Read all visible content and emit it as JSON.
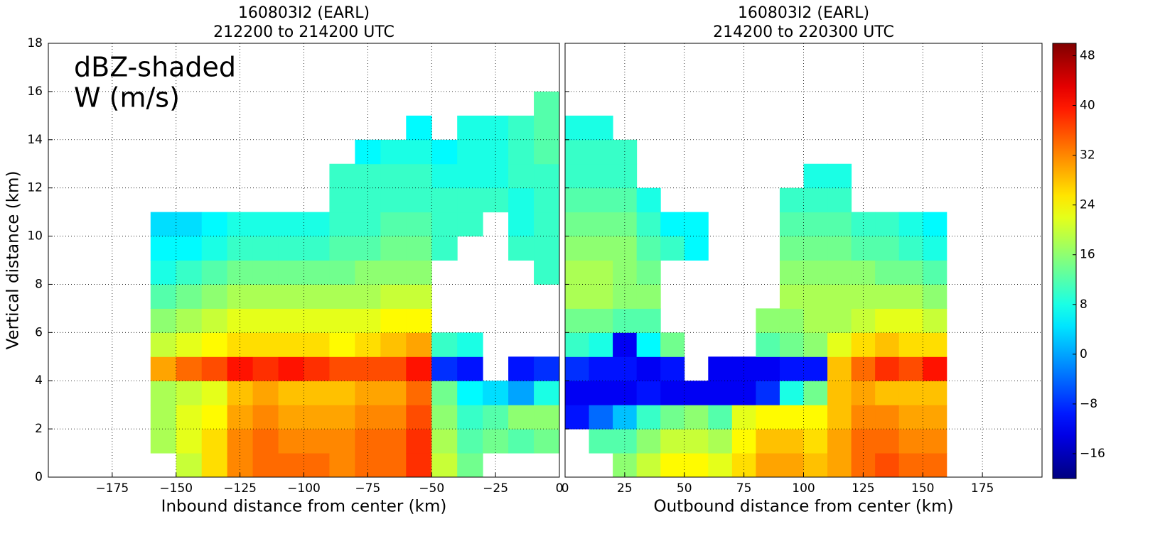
{
  "chart_data": [
    {
      "type": "heatmap",
      "title": [
        "160803I2 (EARL)",
        "212200 to 214200 UTC"
      ],
      "xlabel": "Inbound distance from center (km)",
      "ylabel": "Vertical distance (km)",
      "annotations": [
        "dBZ-shaded",
        "W (m/s)"
      ],
      "xlim": [
        -200,
        0
      ],
      "ylim": [
        0,
        18
      ],
      "xticks": [
        {
          "value": -175,
          "label": "−175"
        },
        {
          "value": -150,
          "label": "−150"
        },
        {
          "value": -125,
          "label": "−125"
        },
        {
          "value": -100,
          "label": "−100"
        },
        {
          "value": -75,
          "label": "−75"
        },
        {
          "value": -50,
          "label": "−50"
        },
        {
          "value": -25,
          "label": "−25"
        },
        0
      ],
      "yticks": [
        0,
        2,
        4,
        6,
        8,
        10,
        12,
        14,
        16,
        18
      ],
      "grid": true,
      "xbins": [
        -160,
        -150,
        -140,
        -130,
        -120,
        -110,
        -100,
        -90,
        -80,
        -70,
        -60,
        -50,
        -40,
        -30,
        -20,
        -10,
        0
      ],
      "ybins": [
        0,
        1,
        2,
        3,
        4,
        5,
        6,
        7,
        8,
        9,
        10,
        11,
        12,
        13,
        14,
        15,
        16
      ],
      "values": [
        [
          null,
          18,
          18,
          18,
          30,
          20,
          16,
          12,
          8,
          6,
          4,
          null,
          null,
          null,
          null,
          null
        ],
        [
          20,
          22,
          22,
          20,
          34,
          22,
          18,
          14,
          10,
          6,
          4,
          null,
          null,
          null,
          null,
          null
        ],
        [
          26,
          26,
          24,
          22,
          36,
          24,
          20,
          16,
          12,
          8,
          6,
          null,
          null,
          null,
          null,
          null
        ],
        [
          32,
          32,
          30,
          28,
          40,
          26,
          22,
          18,
          14,
          10,
          8,
          null,
          null,
          null,
          null,
          null
        ],
        [
          34,
          34,
          32,
          30,
          38,
          26,
          22,
          18,
          14,
          10,
          8,
          null,
          null,
          null,
          null,
          null
        ],
        [
          34,
          32,
          30,
          28,
          40,
          26,
          22,
          18,
          14,
          10,
          8,
          null,
          null,
          null,
          null,
          null
        ],
        [
          34,
          32,
          30,
          28,
          38,
          26,
          22,
          18,
          14,
          10,
          8,
          null,
          null,
          null,
          null,
          null
        ],
        [
          32,
          32,
          30,
          28,
          36,
          24,
          22,
          18,
          14,
          12,
          10,
          10,
          10,
          null,
          null,
          null
        ],
        [
          34,
          34,
          32,
          30,
          36,
          26,
          22,
          18,
          16,
          12,
          10,
          10,
          10,
          6,
          null,
          null
        ],
        [
          34,
          34,
          32,
          30,
          36,
          28,
          24,
          20,
          16,
          14,
          12,
          10,
          10,
          8,
          null,
          null
        ],
        [
          38,
          38,
          36,
          34,
          40,
          30,
          24,
          20,
          16,
          14,
          12,
          10,
          10,
          8,
          6,
          null
        ],
        [
          20,
          18,
          16,
          14,
          -8,
          10,
          null,
          null,
          null,
          10,
          10,
          10,
          8,
          6,
          null,
          null
        ],
        [
          14,
          12,
          10,
          6,
          -10,
          8,
          null,
          null,
          null,
          null,
          10,
          10,
          8,
          8,
          8,
          null
        ],
        [
          null,
          14,
          12,
          4,
          null,
          null,
          null,
          null,
          null,
          null,
          null,
          10,
          8,
          8,
          8,
          null
        ],
        [
          null,
          12,
          16,
          0,
          -10,
          null,
          null,
          null,
          null,
          10,
          8,
          8,
          10,
          10,
          10,
          null
        ],
        [
          null,
          14,
          16,
          8,
          -8,
          null,
          null,
          null,
          10,
          10,
          10,
          10,
          10,
          12,
          12,
          12
        ]
      ]
    },
    {
      "type": "heatmap",
      "title": [
        "160803I2 (EARL)",
        "214200 to 220300 UTC"
      ],
      "xlabel": "Outbound distance from center (km)",
      "xlim": [
        0,
        200
      ],
      "ylim": [
        0,
        18
      ],
      "xticks": [
        0,
        25,
        50,
        75,
        100,
        125,
        150,
        175
      ],
      "yticks": [
        0,
        2,
        4,
        6,
        8,
        10,
        12,
        14,
        16,
        18
      ],
      "grid": true,
      "xbins": [
        0,
        10,
        20,
        30,
        40,
        50,
        60,
        70,
        80,
        90,
        100,
        110,
        120,
        130,
        140,
        150,
        160
      ],
      "ybins": [
        0,
        1,
        2,
        3,
        4,
        5,
        6,
        7,
        8,
        9,
        10,
        11,
        12,
        13,
        14,
        15
      ],
      "values": [
        [
          null,
          null,
          -10,
          -12,
          -8,
          10,
          14,
          18,
          18,
          16,
          14,
          12,
          10,
          10,
          8
        ],
        [
          null,
          12,
          -4,
          -12,
          -10,
          8,
          14,
          18,
          18,
          16,
          14,
          12,
          10,
          10,
          8
        ],
        [
          16,
          12,
          2,
          -12,
          -10,
          -12,
          12,
          16,
          16,
          16,
          14,
          12,
          10,
          10,
          null
        ],
        [
          20,
          16,
          10,
          -10,
          -12,
          6,
          12,
          16,
          14,
          12,
          10,
          8,
          null,
          null,
          null
        ],
        [
          24,
          20,
          14,
          -12,
          -10,
          14,
          null,
          null,
          null,
          10,
          6,
          null,
          null,
          null,
          null
        ],
        [
          24,
          20,
          16,
          -12,
          null,
          null,
          null,
          null,
          null,
          6,
          6,
          null,
          null,
          null,
          null
        ],
        [
          22,
          18,
          12,
          -12,
          -12,
          null,
          null,
          null,
          null,
          null,
          null,
          null,
          null,
          null,
          null
        ],
        [
          26,
          24,
          22,
          -12,
          -12,
          null,
          null,
          null,
          null,
          null,
          null,
          null,
          null,
          null,
          null
        ],
        [
          30,
          28,
          24,
          -8,
          -12,
          12,
          16,
          null,
          null,
          null,
          null,
          null,
          null,
          null,
          null
        ],
        [
          30,
          28,
          24,
          8,
          -10,
          14,
          16,
          18,
          16,
          14,
          12,
          10,
          null,
          null,
          null
        ],
        [
          28,
          26,
          24,
          14,
          -10,
          16,
          18,
          18,
          16,
          14,
          12,
          10,
          8,
          null,
          null
        ],
        [
          30,
          30,
          28,
          28,
          28,
          22,
          18,
          18,
          16,
          14,
          12,
          10,
          8,
          null,
          null
        ],
        [
          34,
          34,
          32,
          30,
          34,
          26,
          20,
          18,
          16,
          12,
          10,
          null,
          null,
          null,
          null
        ],
        [
          36,
          34,
          32,
          28,
          38,
          28,
          22,
          18,
          14,
          12,
          10,
          null,
          null,
          null,
          null
        ],
        [
          34,
          32,
          30,
          28,
          36,
          26,
          22,
          18,
          14,
          10,
          8,
          null,
          null,
          null,
          null
        ],
        [
          34,
          32,
          30,
          28,
          40,
          26,
          20,
          16,
          12,
          8,
          6,
          null,
          null,
          null,
          null
        ]
      ]
    }
  ],
  "colorbar": {
    "lim": [
      -20,
      50
    ],
    "ticks": [
      {
        "value": -16,
        "label": "−16"
      },
      {
        "value": -8,
        "label": "−8"
      },
      0,
      8,
      16,
      24,
      32,
      40,
      48
    ],
    "colormap": "jet"
  }
}
